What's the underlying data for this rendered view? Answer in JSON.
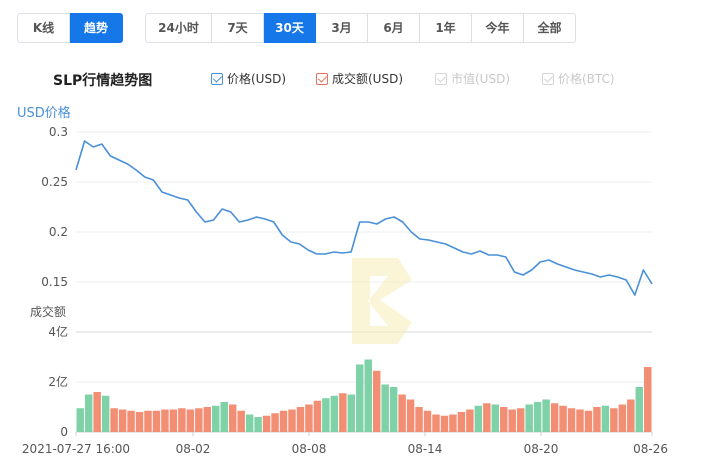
{
  "toolbar": {
    "type_tabs": [
      {
        "label": "K线",
        "active": false
      },
      {
        "label": "趋势",
        "active": true
      }
    ],
    "range_tabs": [
      {
        "label": "24小时",
        "active": false
      },
      {
        "label": "7天",
        "active": false
      },
      {
        "label": "30天",
        "active": true
      },
      {
        "label": "3月",
        "active": false
      },
      {
        "label": "6月",
        "active": false
      },
      {
        "label": "1年",
        "active": false
      },
      {
        "label": "今年",
        "active": false
      },
      {
        "label": "全部",
        "active": false
      }
    ]
  },
  "chart_title": "SLP行情趋势图",
  "legend": {
    "price": {
      "label": "价格(USD)",
      "checked": true,
      "color": "#4a90d9"
    },
    "volume": {
      "label": "成交额(USD)",
      "checked": true,
      "color": "#e8735a"
    },
    "market_cap": {
      "label": "市值(USD)",
      "checked": true,
      "disabled": true
    },
    "price_btc": {
      "label": "价格(BTC)",
      "checked": true,
      "disabled": true
    }
  },
  "colors": {
    "accent": "#1677e8",
    "price_line": "#4a90d9",
    "volume_up": "#7fd1a8",
    "volume_down": "#f28e74"
  },
  "chart_data": [
    {
      "type": "line",
      "title": "SLP行情趋势图",
      "ylabel": "USD价格",
      "ylim": [
        0.15,
        0.3
      ],
      "yticks": [
        "0.3",
        "0.25",
        "0.2",
        "0.15"
      ],
      "xticks": [
        "2021-07-27 16:00",
        "08-02",
        "08-08",
        "08-14",
        "08-20",
        "08-26"
      ],
      "x_range": [
        "2021-07-27 16:00",
        "08-26"
      ],
      "series": [
        {
          "name": "价格(USD)",
          "values": [
            0.262,
            0.291,
            0.285,
            0.288,
            0.276,
            0.272,
            0.268,
            0.262,
            0.255,
            0.252,
            0.24,
            0.237,
            0.234,
            0.232,
            0.22,
            0.21,
            0.212,
            0.223,
            0.22,
            0.21,
            0.212,
            0.215,
            0.213,
            0.21,
            0.197,
            0.19,
            0.188,
            0.182,
            0.178,
            0.178,
            0.18,
            0.179,
            0.18,
            0.21,
            0.21,
            0.208,
            0.213,
            0.215,
            0.21,
            0.2,
            0.193,
            0.192,
            0.19,
            0.188,
            0.184,
            0.18,
            0.178,
            0.181,
            0.177,
            0.177,
            0.175,
            0.16,
            0.157,
            0.162,
            0.17,
            0.172,
            0.168,
            0.165,
            0.162,
            0.16,
            0.158,
            0.155,
            0.157,
            0.155,
            0.152,
            0.137,
            0.162,
            0.148
          ]
        }
      ]
    },
    {
      "type": "bar",
      "ylabel": "成交额",
      "ylim": [
        0,
        4
      ],
      "yticks": [
        "4亿",
        "2亿",
        "0"
      ],
      "series": [
        {
          "name": "成交额(USD)",
          "values": [
            0.95,
            1.5,
            1.6,
            1.45,
            0.95,
            0.9,
            0.85,
            0.8,
            0.85,
            0.85,
            0.9,
            0.9,
            0.95,
            0.9,
            0.95,
            1.0,
            1.05,
            1.2,
            1.1,
            0.85,
            0.7,
            0.6,
            0.65,
            0.75,
            0.85,
            0.9,
            1.0,
            1.1,
            1.25,
            1.35,
            1.45,
            1.55,
            1.5,
            2.7,
            2.9,
            2.45,
            1.9,
            1.8,
            1.5,
            1.3,
            1.0,
            0.85,
            0.7,
            0.65,
            0.7,
            0.8,
            0.9,
            1.05,
            1.15,
            1.1,
            1.0,
            0.9,
            0.95,
            1.1,
            1.2,
            1.3,
            1.15,
            1.05,
            0.95,
            0.9,
            0.85,
            1.0,
            1.05,
            0.95,
            1.1,
            1.3,
            1.8,
            2.6
          ]
        }
      ]
    }
  ]
}
